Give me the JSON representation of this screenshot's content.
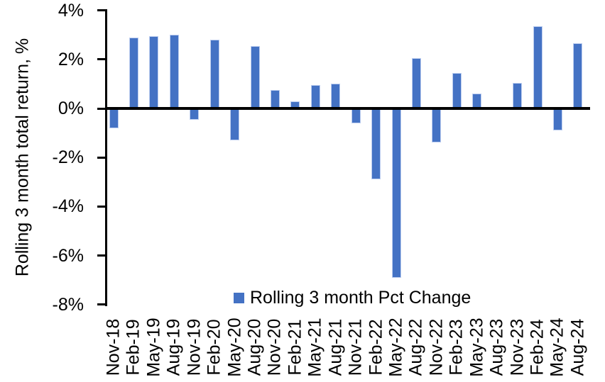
{
  "chart_data": {
    "type": "bar",
    "title": "",
    "ylabel": "Rolling 3 month total return, %",
    "xlabel": "",
    "series_name": "Rolling 3 month Pct Change",
    "categories": [
      "Nov-18",
      "Feb-19",
      "May-19",
      "Aug-19",
      "Nov-19",
      "Feb-20",
      "May-20",
      "Aug-20",
      "Nov-20",
      "Feb-21",
      "May-21",
      "Aug-21",
      "Nov-21",
      "Feb-22",
      "May-22",
      "Aug-22",
      "Nov-22",
      "Feb-23",
      "May-23",
      "Aug-23",
      "Nov-23",
      "Feb-24",
      "May-24",
      "Aug-24"
    ],
    "values": [
      -0.8,
      2.9,
      2.95,
      3.0,
      -0.45,
      2.8,
      -1.3,
      2.55,
      0.75,
      0.3,
      0.95,
      1.0,
      -0.6,
      -2.9,
      -6.9,
      2.05,
      -1.4,
      1.45,
      0.6,
      0.0,
      1.05,
      3.35,
      -0.9,
      2.65
    ],
    "ylim": [
      -8,
      4
    ],
    "yticks": [
      {
        "value": 4,
        "label": "4%"
      },
      {
        "value": 2,
        "label": "2%"
      },
      {
        "value": 0,
        "label": "0%"
      },
      {
        "value": -2,
        "label": "-2%"
      },
      {
        "value": -4,
        "label": "-4%"
      },
      {
        "value": -6,
        "label": "-6%"
      },
      {
        "value": -8,
        "label": "-8%"
      }
    ],
    "bar_color": "#4472C4",
    "bar_border_color": "#BCCDEF",
    "axis_color": "#000000",
    "text_color": "#000000",
    "background_color": "#FFFFFF",
    "grid": false,
    "legend_position": "bottom-center"
  }
}
